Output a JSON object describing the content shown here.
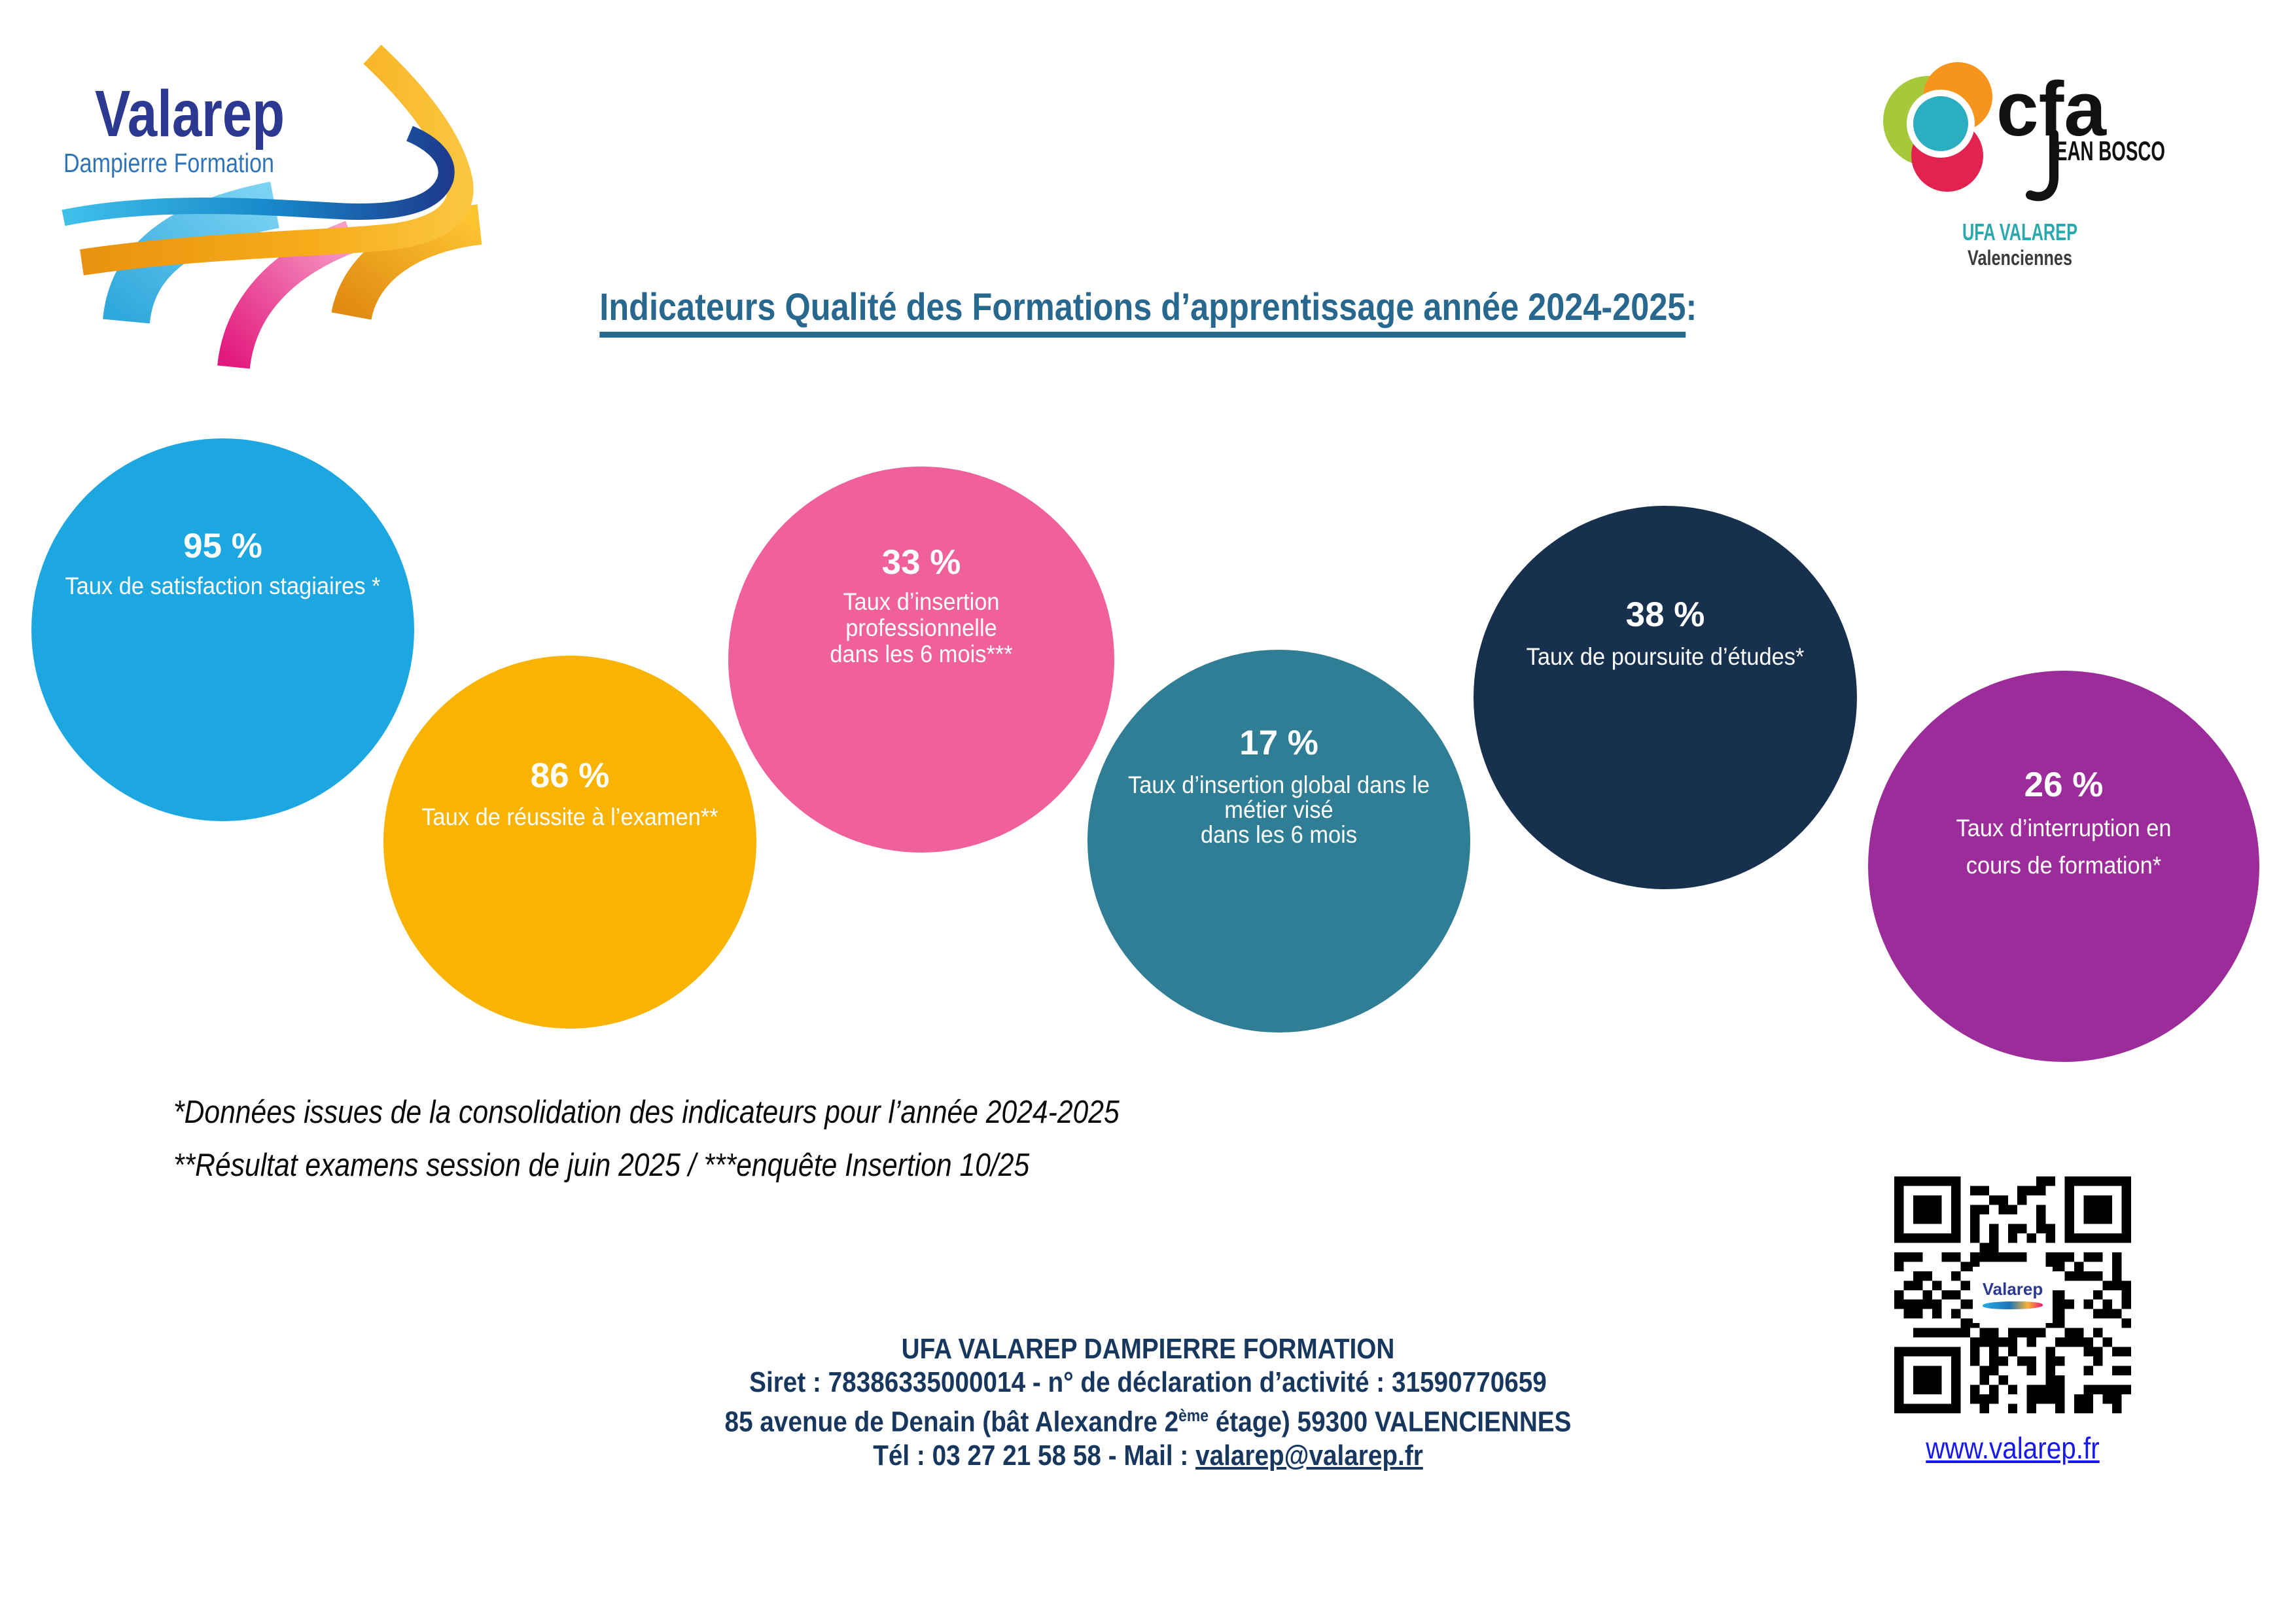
{
  "valarep_logo": {
    "name": "Valarep",
    "subtitle": "Dampierre Formation"
  },
  "cfa_logo": {
    "cfa": "cfa",
    "jean_bosco": "EAN BOSCO",
    "ufa_line": "UFA VALAREP",
    "city_line": "Valenciennes",
    "ufa_color": "#29A9AE"
  },
  "title": {
    "text": "Indicateurs Qualité des Formations d’apprentissage année 2024-2025",
    "suffix": ":",
    "color": "#28688E"
  },
  "indicators": [
    {
      "value": "95 %",
      "label_lines": [
        "Taux de satisfaction stagiaires *"
      ],
      "color": "#1CA7E0"
    },
    {
      "value": "86 %",
      "label_lines": [
        "Taux de réussite à l’examen**"
      ],
      "color": "#F8B303"
    },
    {
      "value": "33 %",
      "label_lines": [
        "Taux d’insertion",
        "professionnelle",
        "dans les 6 mois***"
      ],
      "color": "#F0619B"
    },
    {
      "value": "17 %",
      "label_lines": [
        "Taux d’insertion global dans le",
        "métier visé",
        "dans les 6 mois"
      ],
      "color": "#2F7E95"
    },
    {
      "value": "38 %",
      "label_lines": [
        "Taux de poursuite d’études*"
      ],
      "color": "#16304E"
    },
    {
      "value": "26 %",
      "label_lines": [
        "Taux d’interruption en",
        "cours de formation*"
      ],
      "color": "#9C2C99"
    }
  ],
  "footnotes": {
    "line1": "*Données issues de la consolidation des indicateurs pour l’année 2024-2025",
    "line2": "**Résultat examens session de juin 2025 / ***enquête Insertion 10/25"
  },
  "footer": {
    "color": "#17375E",
    "org": "UFA VALAREP DAMPIERRE FORMATION",
    "siret": "Siret : 78386335000014 - n° de déclaration d’activité : 31590770659",
    "address_prefix": "85 avenue de Denain (bât Alexandre 2",
    "address_sup": "ème",
    "address_suffix": " étage) 59300 VALENCIENNES",
    "contact_prefix": "Tél : 03 27 21 58 58 - Mail : ",
    "email": "valarep@valarep.fr"
  },
  "qr": {
    "center_label": "Valarep",
    "caption_link": "www.valarep.fr",
    "link_color": "#1717EF"
  }
}
